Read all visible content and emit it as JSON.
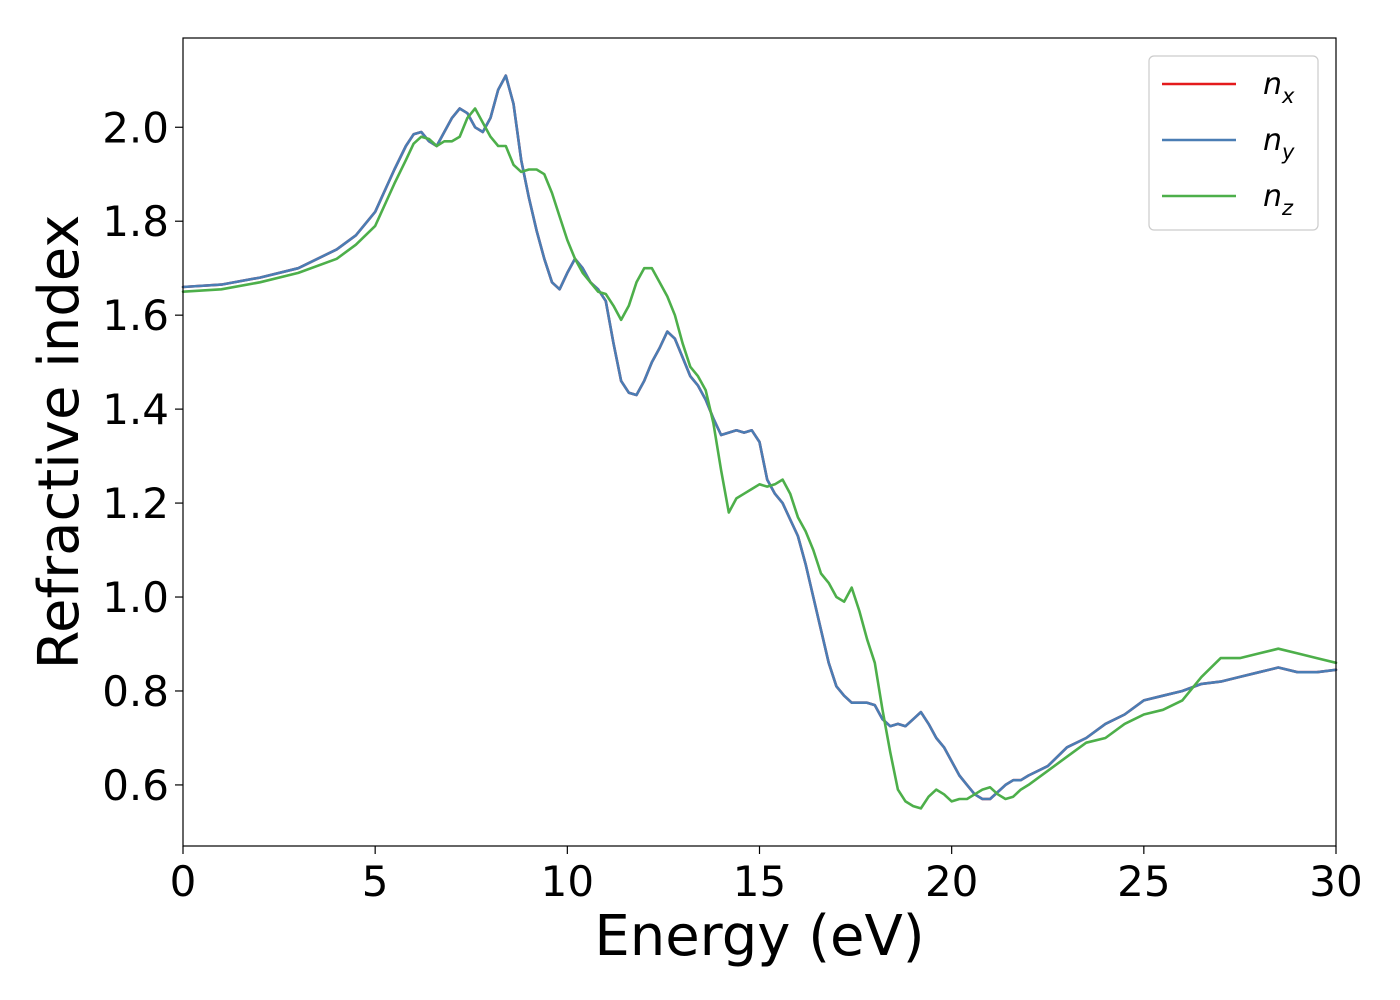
{
  "chart_data": {
    "type": "line",
    "xlabel": "Energy (eV)",
    "ylabel": "Refractive index",
    "xlim": [
      0,
      30
    ],
    "ylim": [
      0.47,
      2.19
    ],
    "xticks": [
      0,
      5,
      10,
      15,
      20,
      25,
      30
    ],
    "yticks": [
      0.6,
      0.8,
      1.0,
      1.2,
      1.4,
      1.6,
      1.8,
      2.0
    ],
    "ytick_labels": [
      "0.6",
      "0.8",
      "1.0",
      "1.2",
      "1.4",
      "1.6",
      "1.8",
      "2.0"
    ],
    "xtick_labels": [
      "0",
      "5",
      "10",
      "15",
      "20",
      "25",
      "30"
    ],
    "grid": false,
    "legend_position": "top-right",
    "series": [
      {
        "name": "n_x",
        "label_main": "n",
        "label_sub": "x",
        "color": "#e41a1c",
        "x": [
          0,
          1,
          2,
          3,
          4,
          4.5,
          5,
          5.5,
          5.8,
          6.0,
          6.2,
          6.4,
          6.6,
          6.8,
          7.0,
          7.2,
          7.4,
          7.6,
          7.8,
          8.0,
          8.2,
          8.4,
          8.6,
          8.8,
          9.0,
          9.2,
          9.4,
          9.6,
          9.8,
          10.0,
          10.2,
          10.4,
          10.6,
          10.8,
          11.0,
          11.2,
          11.4,
          11.6,
          11.8,
          12.0,
          12.2,
          12.4,
          12.6,
          12.8,
          13.0,
          13.2,
          13.4,
          13.6,
          13.8,
          14.0,
          14.2,
          14.4,
          14.6,
          14.8,
          15.0,
          15.2,
          15.4,
          15.6,
          15.8,
          16.0,
          16.2,
          16.4,
          16.6,
          16.8,
          17.0,
          17.2,
          17.4,
          17.6,
          17.8,
          18.0,
          18.2,
          18.4,
          18.6,
          18.8,
          19.0,
          19.2,
          19.4,
          19.6,
          19.8,
          20.0,
          20.2,
          20.4,
          20.6,
          20.8,
          21.0,
          21.2,
          21.4,
          21.6,
          21.8,
          22.0,
          22.5,
          23.0,
          23.5,
          24.0,
          24.5,
          25.0,
          25.5,
          26.0,
          26.5,
          27.0,
          27.5,
          28.0,
          28.5,
          29.0,
          29.5,
          30.0
        ],
        "values": [
          1.66,
          1.665,
          1.68,
          1.7,
          1.74,
          1.77,
          1.82,
          1.91,
          1.96,
          1.985,
          1.99,
          1.97,
          1.96,
          1.99,
          2.02,
          2.04,
          2.03,
          2.0,
          1.99,
          2.02,
          2.08,
          2.11,
          2.05,
          1.93,
          1.85,
          1.78,
          1.72,
          1.67,
          1.655,
          1.69,
          1.72,
          1.7,
          1.67,
          1.655,
          1.63,
          1.54,
          1.46,
          1.435,
          1.43,
          1.46,
          1.5,
          1.53,
          1.565,
          1.55,
          1.51,
          1.47,
          1.45,
          1.42,
          1.38,
          1.345,
          1.35,
          1.355,
          1.35,
          1.355,
          1.33,
          1.25,
          1.22,
          1.2,
          1.165,
          1.13,
          1.07,
          1.0,
          0.93,
          0.86,
          0.81,
          0.79,
          0.775,
          0.775,
          0.775,
          0.77,
          0.74,
          0.725,
          0.73,
          0.725,
          0.74,
          0.755,
          0.73,
          0.7,
          0.68,
          0.65,
          0.62,
          0.6,
          0.58,
          0.57,
          0.57,
          0.585,
          0.6,
          0.61,
          0.61,
          0.62,
          0.64,
          0.68,
          0.7,
          0.73,
          0.75,
          0.78,
          0.79,
          0.8,
          0.815,
          0.82,
          0.83,
          0.84,
          0.85,
          0.84,
          0.84,
          0.845
        ]
      },
      {
        "name": "n_y",
        "label_main": "n",
        "label_sub": "y",
        "color": "#4a7db4",
        "x": [
          0,
          1,
          2,
          3,
          4,
          4.5,
          5,
          5.5,
          5.8,
          6.0,
          6.2,
          6.4,
          6.6,
          6.8,
          7.0,
          7.2,
          7.4,
          7.6,
          7.8,
          8.0,
          8.2,
          8.4,
          8.6,
          8.8,
          9.0,
          9.2,
          9.4,
          9.6,
          9.8,
          10.0,
          10.2,
          10.4,
          10.6,
          10.8,
          11.0,
          11.2,
          11.4,
          11.6,
          11.8,
          12.0,
          12.2,
          12.4,
          12.6,
          12.8,
          13.0,
          13.2,
          13.4,
          13.6,
          13.8,
          14.0,
          14.2,
          14.4,
          14.6,
          14.8,
          15.0,
          15.2,
          15.4,
          15.6,
          15.8,
          16.0,
          16.2,
          16.4,
          16.6,
          16.8,
          17.0,
          17.2,
          17.4,
          17.6,
          17.8,
          18.0,
          18.2,
          18.4,
          18.6,
          18.8,
          19.0,
          19.2,
          19.4,
          19.6,
          19.8,
          20.0,
          20.2,
          20.4,
          20.6,
          20.8,
          21.0,
          21.2,
          21.4,
          21.6,
          21.8,
          22.0,
          22.5,
          23.0,
          23.5,
          24.0,
          24.5,
          25.0,
          25.5,
          26.0,
          26.5,
          27.0,
          27.5,
          28.0,
          28.5,
          29.0,
          29.5,
          30.0
        ],
        "values": [
          1.66,
          1.665,
          1.68,
          1.7,
          1.74,
          1.77,
          1.82,
          1.91,
          1.96,
          1.985,
          1.99,
          1.97,
          1.96,
          1.99,
          2.02,
          2.04,
          2.03,
          2.0,
          1.99,
          2.02,
          2.08,
          2.11,
          2.05,
          1.93,
          1.85,
          1.78,
          1.72,
          1.67,
          1.655,
          1.69,
          1.72,
          1.7,
          1.67,
          1.655,
          1.63,
          1.54,
          1.46,
          1.435,
          1.43,
          1.46,
          1.5,
          1.53,
          1.565,
          1.55,
          1.51,
          1.47,
          1.45,
          1.42,
          1.38,
          1.345,
          1.35,
          1.355,
          1.35,
          1.355,
          1.33,
          1.25,
          1.22,
          1.2,
          1.165,
          1.13,
          1.07,
          1.0,
          0.93,
          0.86,
          0.81,
          0.79,
          0.775,
          0.775,
          0.775,
          0.77,
          0.74,
          0.725,
          0.73,
          0.725,
          0.74,
          0.755,
          0.73,
          0.7,
          0.68,
          0.65,
          0.62,
          0.6,
          0.58,
          0.57,
          0.57,
          0.585,
          0.6,
          0.61,
          0.61,
          0.62,
          0.64,
          0.68,
          0.7,
          0.73,
          0.75,
          0.78,
          0.79,
          0.8,
          0.815,
          0.82,
          0.83,
          0.84,
          0.85,
          0.84,
          0.84,
          0.845
        ]
      },
      {
        "name": "n_z",
        "label_main": "n",
        "label_sub": "z",
        "color": "#4daf4a",
        "x": [
          0,
          1,
          2,
          3,
          4,
          4.5,
          5,
          5.5,
          5.8,
          6.0,
          6.2,
          6.4,
          6.6,
          6.8,
          7.0,
          7.2,
          7.4,
          7.6,
          7.8,
          8.0,
          8.2,
          8.4,
          8.6,
          8.8,
          9.0,
          9.2,
          9.4,
          9.6,
          9.8,
          10.0,
          10.2,
          10.4,
          10.6,
          10.8,
          11.0,
          11.2,
          11.4,
          11.6,
          11.8,
          12.0,
          12.2,
          12.4,
          12.6,
          12.8,
          13.0,
          13.2,
          13.4,
          13.6,
          13.8,
          14.0,
          14.2,
          14.4,
          14.6,
          14.8,
          15.0,
          15.2,
          15.4,
          15.6,
          15.8,
          16.0,
          16.2,
          16.4,
          16.6,
          16.8,
          17.0,
          17.2,
          17.4,
          17.6,
          17.8,
          18.0,
          18.2,
          18.4,
          18.6,
          18.8,
          19.0,
          19.2,
          19.4,
          19.6,
          19.8,
          20.0,
          20.2,
          20.4,
          20.6,
          20.8,
          21.0,
          21.2,
          21.4,
          21.6,
          21.8,
          22.0,
          22.5,
          23.0,
          23.5,
          24.0,
          24.5,
          25.0,
          25.5,
          26.0,
          26.5,
          27.0,
          27.5,
          28.0,
          28.5,
          29.0,
          29.5,
          30.0
        ],
        "values": [
          1.65,
          1.655,
          1.67,
          1.69,
          1.72,
          1.75,
          1.79,
          1.88,
          1.93,
          1.965,
          1.98,
          1.975,
          1.96,
          1.97,
          1.97,
          1.98,
          2.02,
          2.04,
          2.01,
          1.98,
          1.96,
          1.96,
          1.92,
          1.905,
          1.91,
          1.91,
          1.9,
          1.86,
          1.81,
          1.76,
          1.72,
          1.69,
          1.67,
          1.65,
          1.645,
          1.62,
          1.59,
          1.62,
          1.67,
          1.7,
          1.7,
          1.67,
          1.64,
          1.6,
          1.54,
          1.49,
          1.47,
          1.44,
          1.37,
          1.27,
          1.18,
          1.21,
          1.22,
          1.23,
          1.24,
          1.235,
          1.24,
          1.25,
          1.22,
          1.17,
          1.14,
          1.1,
          1.05,
          1.03,
          1.0,
          0.99,
          1.02,
          0.97,
          0.91,
          0.86,
          0.76,
          0.67,
          0.59,
          0.565,
          0.555,
          0.55,
          0.575,
          0.59,
          0.58,
          0.565,
          0.57,
          0.57,
          0.58,
          0.59,
          0.595,
          0.58,
          0.57,
          0.575,
          0.59,
          0.6,
          0.63,
          0.66,
          0.69,
          0.7,
          0.73,
          0.75,
          0.76,
          0.78,
          0.83,
          0.87,
          0.87,
          0.88,
          0.89,
          0.88,
          0.87,
          0.86
        ]
      }
    ]
  }
}
